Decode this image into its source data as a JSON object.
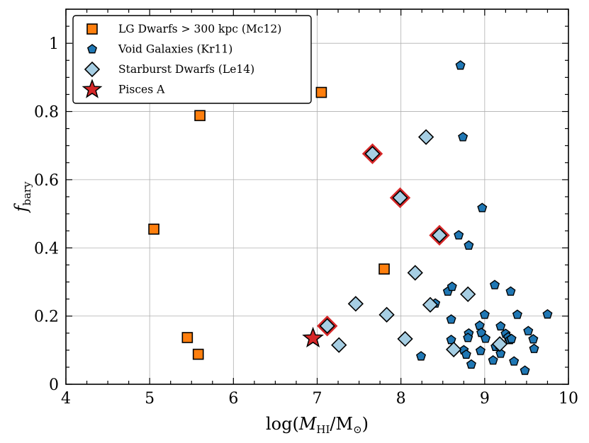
{
  "chart_data": {
    "type": "scatter",
    "xlabel": "log(M_HI/M_⊙)",
    "ylabel": "f_bary",
    "xlim": [
      4,
      10
    ],
    "ylim": [
      0,
      1.1
    ],
    "xticks": [
      4,
      5,
      6,
      7,
      8,
      9,
      10
    ],
    "yticks": [
      0,
      0.2,
      0.4,
      0.6,
      0.8,
      1
    ],
    "ytick_labels": [
      "0",
      "0.2",
      "0.4",
      "0.6",
      "0.8",
      "1"
    ],
    "grid": true,
    "legend_position": "top-left",
    "series": [
      {
        "name": "LG Dwarfs > 300 kpc (Mc12)",
        "marker": "square",
        "color": "#ff7f0e",
        "points": [
          [
            5.05,
            0.455
          ],
          [
            5.45,
            0.137
          ],
          [
            5.58,
            0.088
          ],
          [
            5.6,
            0.788
          ],
          [
            7.05,
            0.856
          ],
          [
            7.8,
            0.338
          ]
        ]
      },
      {
        "name": "Void Galaxies (Kr11)",
        "marker": "pentagon",
        "color": "#1f77b4",
        "points": [
          [
            8.71,
            0.935
          ],
          [
            8.74,
            0.725
          ],
          [
            8.97,
            0.517
          ],
          [
            8.69,
            0.437
          ],
          [
            8.81,
            0.407
          ],
          [
            9.12,
            0.291
          ],
          [
            9.31,
            0.272
          ],
          [
            8.56,
            0.272
          ],
          [
            8.61,
            0.286
          ],
          [
            8.41,
            0.237
          ],
          [
            9.0,
            0.204
          ],
          [
            9.39,
            0.204
          ],
          [
            9.75,
            0.205
          ],
          [
            8.6,
            0.19
          ],
          [
            8.94,
            0.172
          ],
          [
            9.19,
            0.17
          ],
          [
            9.52,
            0.156
          ],
          [
            8.81,
            0.149
          ],
          [
            8.96,
            0.151
          ],
          [
            9.25,
            0.148
          ],
          [
            9.28,
            0.138
          ],
          [
            8.8,
            0.136
          ],
          [
            9.3,
            0.13
          ],
          [
            9.32,
            0.133
          ],
          [
            9.58,
            0.132
          ],
          [
            8.6,
            0.13
          ],
          [
            9.01,
            0.134
          ],
          [
            9.13,
            0.11
          ],
          [
            9.17,
            0.115
          ],
          [
            8.75,
            0.1
          ],
          [
            8.95,
            0.098
          ],
          [
            9.59,
            0.104
          ],
          [
            8.78,
            0.087
          ],
          [
            9.19,
            0.09
          ],
          [
            8.24,
            0.082
          ],
          [
            9.1,
            0.07
          ],
          [
            9.35,
            0.067
          ],
          [
            8.84,
            0.058
          ],
          [
            9.48,
            0.04
          ]
        ]
      },
      {
        "name": "Starburst Dwarfs (Le14)",
        "marker": "diamond",
        "color": "#a6cee3",
        "points": [
          [
            8.3,
            0.725
          ],
          [
            7.66,
            0.676
          ],
          [
            7.99,
            0.547
          ],
          [
            8.46,
            0.437
          ],
          [
            8.17,
            0.327
          ],
          [
            8.8,
            0.264
          ],
          [
            7.46,
            0.236
          ],
          [
            8.35,
            0.233
          ],
          [
            7.83,
            0.204
          ],
          [
            7.12,
            0.171
          ],
          [
            8.05,
            0.133
          ],
          [
            7.26,
            0.115
          ],
          [
            8.63,
            0.102
          ],
          [
            9.18,
            0.118
          ]
        ],
        "highlighted": [
          [
            7.66,
            0.676
          ],
          [
            7.99,
            0.547
          ],
          [
            8.46,
            0.437
          ],
          [
            7.12,
            0.171
          ]
        ]
      },
      {
        "name": "Pisces A",
        "marker": "star",
        "color": "#d62728",
        "points": [
          [
            6.95,
            0.135
          ]
        ]
      }
    ]
  }
}
